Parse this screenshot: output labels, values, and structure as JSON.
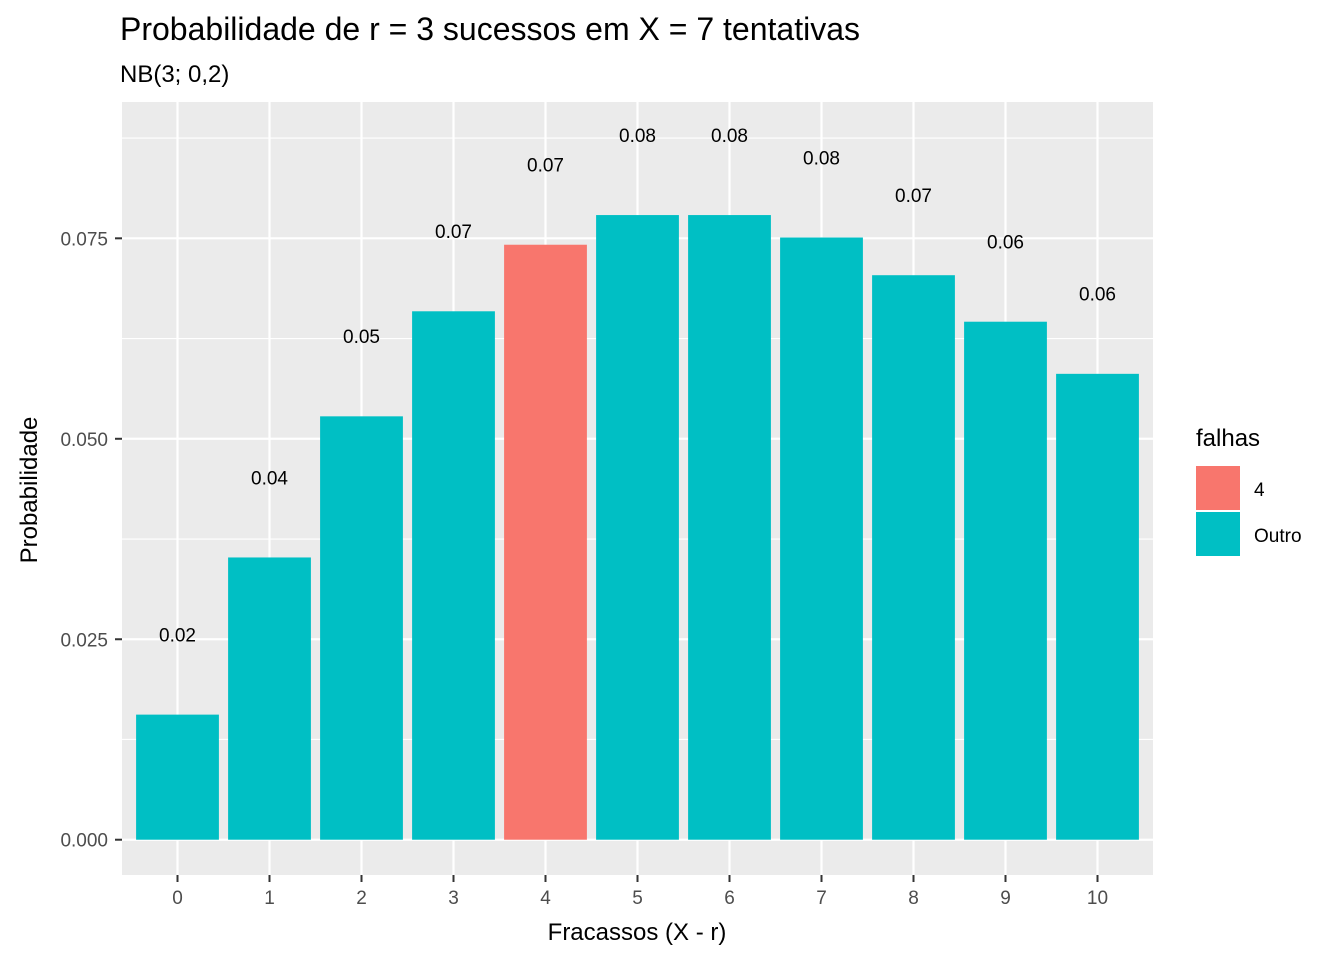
{
  "chart_data": {
    "type": "bar",
    "title": "Probabilidade de r = 3 sucessos em X = 7 tentativas",
    "subtitle": "NB(3; 0,2)",
    "xlabel": "Fracassos (X - r)",
    "ylabel": "Probabilidade",
    "categories": [
      "0",
      "1",
      "2",
      "3",
      "4",
      "5",
      "6",
      "7",
      "8",
      "9",
      "10"
    ],
    "values": [
      0.0156,
      0.0352,
      0.0528,
      0.0659,
      0.0742,
      0.0779,
      0.0779,
      0.0751,
      0.0704,
      0.0646,
      0.0581
    ],
    "data_labels": [
      "0.02",
      "0.04",
      "0.05",
      "0.07",
      "0.07",
      "0.08",
      "0.08",
      "0.08",
      "0.07",
      "0.06",
      "0.06"
    ],
    "label_heights": [
      0.0256,
      0.0452,
      0.0628,
      0.0759,
      0.0842,
      0.0879,
      0.0879,
      0.0851,
      0.0804,
      0.0746,
      0.0681
    ],
    "groups": [
      "Outro",
      "Outro",
      "Outro",
      "Outro",
      "4",
      "Outro",
      "Outro",
      "Outro",
      "Outro",
      "Outro",
      "Outro"
    ],
    "ylim": [
      -0.0044,
      0.092
    ],
    "yticks": [
      0.0,
      0.025,
      0.05,
      0.075
    ],
    "ytick_labels": [
      "0.000",
      "0.025",
      "0.050",
      "0.075"
    ],
    "grid": true,
    "legend": {
      "title": "falhas",
      "position": "right",
      "entries": [
        {
          "label": "4",
          "color": "#F8766D"
        },
        {
          "label": "Outro",
          "color": "#00BFC4"
        }
      ]
    },
    "colors": {
      "4": "#F8766D",
      "Outro": "#00BFC4",
      "panel": "#EBEBEB",
      "grid": "#FFFFFF"
    }
  }
}
